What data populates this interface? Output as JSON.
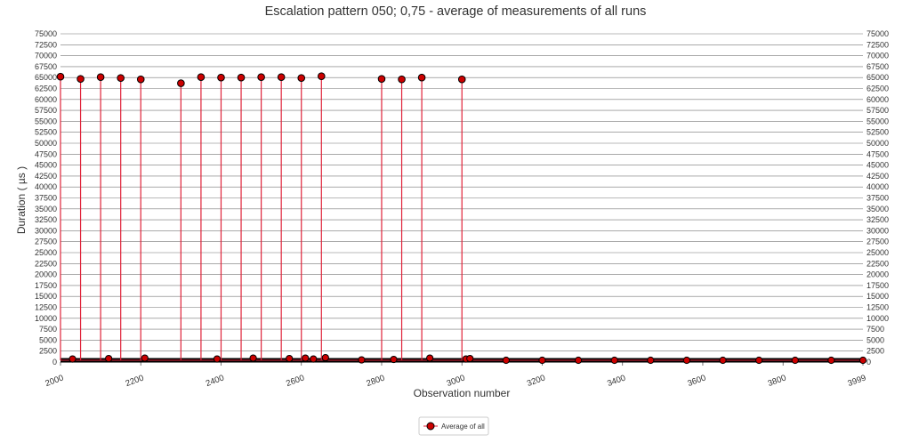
{
  "chart_data": {
    "type": "line",
    "title": "Escalation pattern 050; 0,75 - average of measurements of all runs",
    "xlabel": "Observation number",
    "ylabel": "Duration ( µs )",
    "xlim": [
      2000,
      3999
    ],
    "ylim": [
      0,
      75000
    ],
    "x_ticks": [
      "2000",
      "2200",
      "2400",
      "2600",
      "2800",
      "3000",
      "3200",
      "3400",
      "3600",
      "3800",
      "3999"
    ],
    "y_ticks": [
      "0",
      "2500",
      "5000",
      "7500",
      "10000",
      "12500",
      "15000",
      "17500",
      "20000",
      "22500",
      "25000",
      "27500",
      "30000",
      "32500",
      "35000",
      "37500",
      "40000",
      "42500",
      "45000",
      "47500",
      "50000",
      "52500",
      "55000",
      "57500",
      "60000",
      "62500",
      "65000",
      "67500",
      "70000",
      "72500",
      "75000"
    ],
    "grid": true,
    "legend_position": "bottom-center",
    "series": [
      {
        "name": "Average of all",
        "color": "#cc0000",
        "line_color": "#e0233a",
        "baseline": 400,
        "spikes": [
          {
            "x": 2000,
            "y": 65200
          },
          {
            "x": 2050,
            "y": 64700
          },
          {
            "x": 2100,
            "y": 65100
          },
          {
            "x": 2150,
            "y": 64900
          },
          {
            "x": 2200,
            "y": 64600
          },
          {
            "x": 2300,
            "y": 63700
          },
          {
            "x": 2350,
            "y": 65100
          },
          {
            "x": 2400,
            "y": 65000
          },
          {
            "x": 2450,
            "y": 65000
          },
          {
            "x": 2500,
            "y": 65100
          },
          {
            "x": 2550,
            "y": 65100
          },
          {
            "x": 2600,
            "y": 64900
          },
          {
            "x": 2650,
            "y": 65300
          },
          {
            "x": 2800,
            "y": 64700
          },
          {
            "x": 2850,
            "y": 64600
          },
          {
            "x": 2900,
            "y": 65000
          },
          {
            "x": 3000,
            "y": 64600
          }
        ],
        "small_points": [
          {
            "x": 2030,
            "y": 700
          },
          {
            "x": 2120,
            "y": 800
          },
          {
            "x": 2210,
            "y": 900
          },
          {
            "x": 2390,
            "y": 700
          },
          {
            "x": 2480,
            "y": 900
          },
          {
            "x": 2570,
            "y": 800
          },
          {
            "x": 2610,
            "y": 900
          },
          {
            "x": 2630,
            "y": 700
          },
          {
            "x": 2660,
            "y": 1000
          },
          {
            "x": 2750,
            "y": 500
          },
          {
            "x": 2830,
            "y": 600
          },
          {
            "x": 2920,
            "y": 900
          },
          {
            "x": 3010,
            "y": 700
          },
          {
            "x": 3020,
            "y": 800
          },
          {
            "x": 3110,
            "y": 400
          },
          {
            "x": 3200,
            "y": 400
          },
          {
            "x": 3290,
            "y": 400
          },
          {
            "x": 3380,
            "y": 400
          },
          {
            "x": 3470,
            "y": 400
          },
          {
            "x": 3560,
            "y": 400
          },
          {
            "x": 3650,
            "y": 400
          },
          {
            "x": 3740,
            "y": 400
          },
          {
            "x": 3830,
            "y": 400
          },
          {
            "x": 3920,
            "y": 400
          },
          {
            "x": 3999,
            "y": 400
          }
        ]
      }
    ]
  }
}
